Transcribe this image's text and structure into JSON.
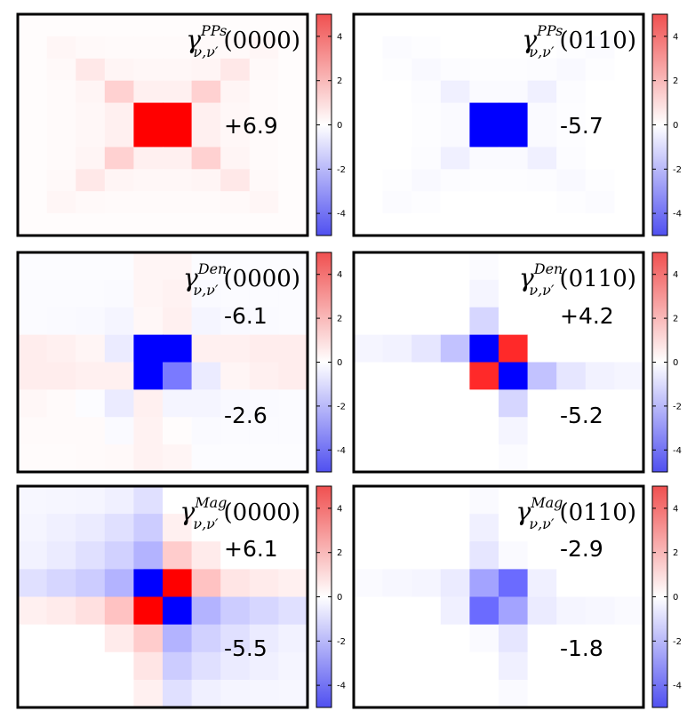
{
  "chart_data": {
    "type": "heatmap",
    "colormap": {
      "low": "#0000ff",
      "mid": "#ffffff",
      "high": "#ff0000",
      "vmin": -5,
      "vmax": 5
    },
    "colorbar_ticks": [
      "4",
      "2",
      "0",
      "-2",
      "-4"
    ],
    "panels": [
      {
        "title_base": "γ",
        "title_sup": "PPs",
        "title_sub": "ν,ν′",
        "title_arg": "(0000)",
        "annotations": [
          "+6.9"
        ],
        "matrix": [
          [
            0.06,
            0.06,
            0.06,
            0.06,
            0.06,
            0.06,
            0.06,
            0.06,
            0.06,
            0.06
          ],
          [
            0.06,
            0.18,
            0.12,
            0.1,
            0.1,
            0.1,
            0.1,
            0.12,
            0.18,
            0.06
          ],
          [
            0.06,
            0.12,
            0.45,
            0.2,
            0.15,
            0.15,
            0.2,
            0.45,
            0.12,
            0.06
          ],
          [
            0.06,
            0.1,
            0.2,
            0.9,
            0.3,
            0.3,
            0.9,
            0.2,
            0.1,
            0.06
          ],
          [
            0.06,
            0.1,
            0.15,
            0.3,
            6.9,
            6.9,
            0.3,
            0.15,
            0.1,
            0.06
          ],
          [
            0.06,
            0.1,
            0.15,
            0.3,
            6.9,
            6.9,
            0.3,
            0.15,
            0.1,
            0.06
          ],
          [
            0.06,
            0.1,
            0.2,
            0.9,
            0.3,
            0.3,
            0.9,
            0.2,
            0.1,
            0.06
          ],
          [
            0.06,
            0.12,
            0.45,
            0.2,
            0.15,
            0.15,
            0.2,
            0.45,
            0.12,
            0.06
          ],
          [
            0.06,
            0.18,
            0.12,
            0.1,
            0.1,
            0.1,
            0.1,
            0.12,
            0.18,
            0.06
          ],
          [
            0.06,
            0.06,
            0.06,
            0.06,
            0.06,
            0.06,
            0.06,
            0.06,
            0.06,
            0.06
          ]
        ]
      },
      {
        "title_base": "γ",
        "title_sup": "PPs",
        "title_sub": "ν,ν′",
        "title_arg": "(0110)",
        "annotations": [
          "-5.7"
        ],
        "matrix": [
          [
            0,
            0,
            0,
            0,
            0,
            0,
            0,
            0,
            0,
            0
          ],
          [
            0,
            -0.08,
            -0.04,
            0,
            0,
            0,
            0,
            -0.04,
            -0.08,
            0
          ],
          [
            0,
            -0.04,
            -0.12,
            -0.06,
            -0.04,
            -0.04,
            -0.06,
            -0.12,
            -0.04,
            0
          ],
          [
            0,
            0,
            -0.06,
            -0.3,
            -0.1,
            -0.1,
            -0.3,
            -0.06,
            0,
            0
          ],
          [
            0,
            0,
            -0.04,
            -0.1,
            -5.7,
            -5.7,
            -0.1,
            -0.04,
            0,
            0
          ],
          [
            0,
            0,
            -0.04,
            -0.1,
            -5.7,
            -5.7,
            -0.1,
            -0.04,
            0,
            0
          ],
          [
            0,
            0,
            -0.06,
            -0.3,
            -0.1,
            -0.1,
            -0.3,
            -0.06,
            0,
            0
          ],
          [
            0,
            -0.04,
            -0.12,
            -0.06,
            -0.04,
            -0.04,
            -0.06,
            -0.12,
            -0.04,
            0
          ],
          [
            0,
            -0.08,
            -0.04,
            0,
            0,
            0,
            0,
            -0.04,
            -0.08,
            0
          ],
          [
            0,
            0,
            0,
            0,
            0,
            0,
            0,
            0,
            0,
            0
          ]
        ]
      },
      {
        "title_base": "γ",
        "title_sup": "Den",
        "title_sub": "ν,ν′",
        "title_arg": "(0000)",
        "annotations": [
          "-6.1",
          "-2.6"
        ],
        "matrix": [
          [
            -0.05,
            -0.05,
            -0.05,
            -0.05,
            0.2,
            0.2,
            -0.05,
            -0.05,
            -0.05,
            -0.05
          ],
          [
            -0.08,
            -0.08,
            -0.08,
            -0.1,
            0.2,
            0.25,
            -0.1,
            -0.08,
            -0.08,
            -0.08
          ],
          [
            -0.08,
            -0.1,
            -0.12,
            -0.2,
            0.15,
            0.3,
            -0.2,
            -0.12,
            -0.1,
            -0.08
          ],
          [
            0.35,
            0.3,
            0.2,
            -0.4,
            -6.1,
            -6.1,
            0.3,
            0.3,
            0.35,
            0.35
          ],
          [
            0.35,
            0.35,
            0.3,
            0.3,
            -6.1,
            -2.6,
            -0.4,
            0.2,
            0.3,
            0.35
          ],
          [
            0.15,
            0.1,
            -0.05,
            -0.4,
            0.3,
            -0.2,
            -0.2,
            -0.12,
            -0.1,
            -0.08
          ],
          [
            0.1,
            0.1,
            0.1,
            -0.1,
            0.25,
            0.05,
            -0.1,
            -0.08,
            -0.08,
            -0.08
          ],
          [
            0.08,
            0.08,
            0.1,
            0.12,
            0.25,
            0.2,
            -0.05,
            -0.05,
            -0.05,
            -0.05
          ]
        ]
      },
      {
        "title_base": "γ",
        "title_sup": "Den",
        "title_sub": "ν,ν′",
        "title_arg": "(0110)",
        "annotations": [
          "+4.2",
          "-5.2"
        ],
        "matrix": [
          [
            0,
            0,
            0,
            0,
            -0.08,
            0,
            0,
            0,
            0,
            0
          ],
          [
            0,
            0,
            0,
            0,
            -0.2,
            0,
            0,
            0,
            0,
            0
          ],
          [
            0,
            0,
            0,
            0,
            -0.8,
            0,
            0,
            0,
            0,
            0
          ],
          [
            -0.2,
            -0.25,
            -0.5,
            -1.2,
            -5.2,
            4.2,
            0,
            0,
            0,
            0
          ],
          [
            0,
            0,
            0,
            0,
            4.2,
            -5.2,
            -1.2,
            -0.5,
            -0.25,
            -0.2
          ],
          [
            0,
            0,
            0,
            0,
            0,
            -0.8,
            0,
            0,
            0,
            0
          ],
          [
            0,
            0,
            0,
            0,
            0,
            -0.2,
            0,
            0,
            0,
            0
          ],
          [
            0,
            0,
            0,
            0,
            0,
            -0.08,
            0,
            0,
            0,
            0
          ]
        ]
      },
      {
        "title_base": "γ",
        "title_sup": "Mag",
        "title_sub": "ν,ν′",
        "title_arg": "(0000)",
        "annotations": [
          "+6.1",
          "-5.5"
        ],
        "matrix": [
          [
            -0.15,
            -0.18,
            -0.2,
            -0.3,
            -0.6,
            0,
            0,
            0,
            0,
            0
          ],
          [
            -0.2,
            -0.3,
            -0.4,
            -0.6,
            -1.0,
            0.3,
            0,
            0,
            0,
            0
          ],
          [
            -0.25,
            -0.4,
            -0.6,
            -0.9,
            -1.5,
            1.0,
            0.4,
            0,
            0,
            0
          ],
          [
            -0.6,
            -0.8,
            -1.0,
            -1.5,
            -5.5,
            6.1,
            1.2,
            0.5,
            0.4,
            0.3
          ],
          [
            0.3,
            0.4,
            0.6,
            1.2,
            6.1,
            -5.5,
            -1.5,
            -1.0,
            -0.8,
            -0.6
          ],
          [
            0,
            0,
            0,
            0.4,
            1.0,
            -1.5,
            -0.9,
            -0.6,
            -0.4,
            -0.25
          ],
          [
            0,
            0,
            0,
            0,
            0.5,
            -1.0,
            -0.6,
            -0.4,
            -0.3,
            -0.2
          ],
          [
            0,
            0,
            0,
            0,
            0.3,
            -0.6,
            -0.3,
            -0.2,
            -0.18,
            -0.15
          ]
        ]
      },
      {
        "title_base": "γ",
        "title_sup": "Mag",
        "title_sub": "ν,ν′",
        "title_arg": "(0110)",
        "annotations": [
          "-2.9",
          "-1.8"
        ],
        "matrix": [
          [
            0,
            0,
            0,
            0,
            -0.1,
            0,
            0,
            0,
            0,
            0
          ],
          [
            0,
            0,
            0,
            0,
            -0.3,
            0,
            0,
            0,
            0,
            0
          ],
          [
            0,
            0,
            0,
            0,
            -0.5,
            -0.1,
            0,
            0,
            0,
            0
          ],
          [
            -0.1,
            -0.15,
            -0.2,
            -0.4,
            -1.8,
            -2.9,
            -0.3,
            0,
            0,
            0
          ],
          [
            0,
            0,
            0,
            -0.3,
            -2.9,
            -1.8,
            -0.4,
            -0.2,
            -0.15,
            -0.1
          ],
          [
            0,
            0,
            0,
            0,
            -0.1,
            -0.5,
            0,
            0,
            0,
            0
          ],
          [
            0,
            0,
            0,
            0,
            0,
            -0.3,
            0,
            0,
            0,
            0
          ],
          [
            0,
            0,
            0,
            0,
            0,
            -0.1,
            0,
            0,
            0,
            0
          ]
        ]
      }
    ]
  }
}
